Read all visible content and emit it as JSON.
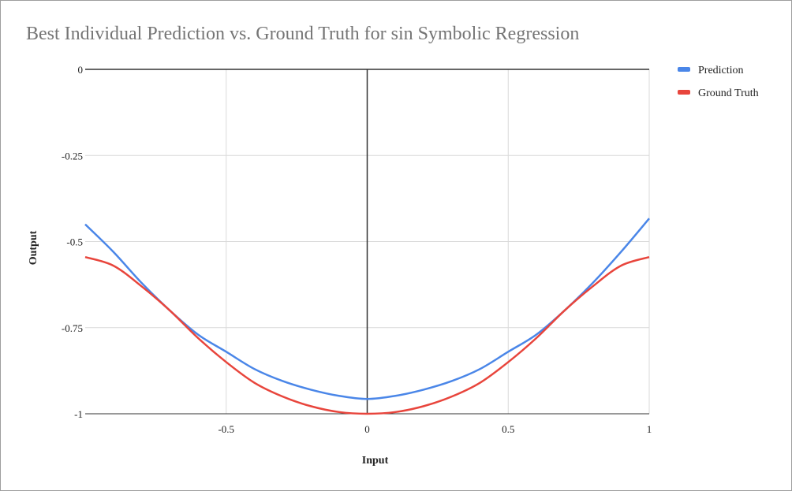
{
  "chart_data": {
    "type": "line",
    "title": "Best Individual Prediction vs. Ground Truth for sin Symbolic Regression",
    "xlabel": "Input",
    "ylabel": "Output",
    "xlim": [
      -1,
      1
    ],
    "ylim": [
      -1,
      0
    ],
    "x_ticks": [
      "-0.5",
      "0",
      "0.5",
      "1"
    ],
    "y_ticks": [
      "0",
      "-0.25",
      "-0.5",
      "-0.75",
      "-1"
    ],
    "grid": true,
    "legend_position": "right",
    "x": [
      -1.0,
      -0.9,
      -0.8,
      -0.7,
      -0.6,
      -0.5,
      -0.4,
      -0.3,
      -0.2,
      -0.1,
      0.0,
      0.1,
      0.2,
      0.3,
      0.4,
      0.5,
      0.6,
      0.7,
      0.8,
      0.9,
      1.0
    ],
    "series": [
      {
        "name": "Prediction",
        "color": "#4a86e8",
        "values": [
          -0.45,
          -0.53,
          -0.62,
          -0.7,
          -0.77,
          -0.82,
          -0.87,
          -0.905,
          -0.93,
          -0.948,
          -0.957,
          -0.948,
          -0.93,
          -0.905,
          -0.87,
          -0.82,
          -0.77,
          -0.7,
          -0.62,
          -0.53,
          -0.433
        ]
      },
      {
        "name": "Ground Truth",
        "color": "#e8453c",
        "values": [
          -0.545,
          -0.57,
          -0.63,
          -0.7,
          -0.78,
          -0.85,
          -0.91,
          -0.95,
          -0.978,
          -0.995,
          -1.0,
          -0.995,
          -0.978,
          -0.95,
          -0.91,
          -0.85,
          -0.78,
          -0.7,
          -0.63,
          -0.57,
          -0.545
        ]
      }
    ]
  }
}
